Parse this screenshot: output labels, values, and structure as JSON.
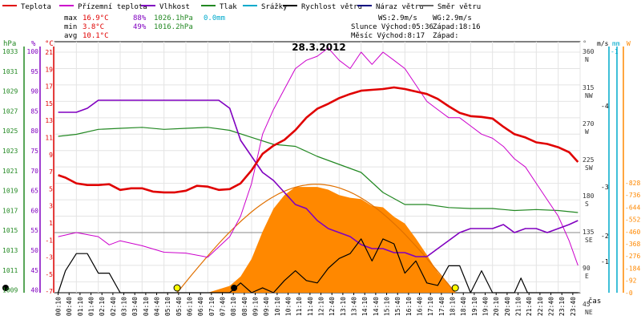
{
  "chart_data": {
    "type": "line",
    "title": "28.3.2012",
    "legend": [
      {
        "key": "teplota",
        "label": "Teplota",
        "color": "#e00000"
      },
      {
        "key": "pteplota",
        "label": "Přízemní teplota",
        "color": "#cc00cc"
      },
      {
        "key": "vlhkost",
        "label": "Vlhkost",
        "color": "#8000c0"
      },
      {
        "key": "tlak",
        "label": "Tlak",
        "color": "#228822"
      },
      {
        "key": "srazky",
        "label": "Srážky",
        "color": "#00aacc"
      },
      {
        "key": "rychlost",
        "label": "Rychlost větru",
        "color": "#000000"
      },
      {
        "key": "naraz",
        "label": "Náraz větru",
        "color": "#000080"
      },
      {
        "key": "smer",
        "label": "Směr větru",
        "color": "#666666"
      }
    ],
    "stats": {
      "max": {
        "label": "max",
        "teplota": "16.9°C",
        "vlhkost": "88%",
        "tlak": "1026.1hPa",
        "srazky": "0.0mm"
      },
      "min": {
        "label": "min",
        "teplota": "3.8°C",
        "vlhkost": "49%",
        "tlak": "1016.2hPa"
      },
      "avg": {
        "label": "avg",
        "teplota": "10.1°C"
      }
    },
    "info": {
      "ws": "WS:2.9m/s",
      "wg": "WG:2.9m/s",
      "slunce": "Slunce Východ:05:36",
      "slunce_zapad": "Západ:18:16",
      "mesic": "Měsíc  Východ:8:17",
      "mesic_zapad": "Západ:"
    },
    "axes": {
      "hpa": {
        "label": "hPa",
        "ticks": [
          "1033",
          "1031",
          "1029",
          "1027",
          "1025",
          "1023",
          "1021",
          "1019",
          "1017",
          "1015",
          "1013",
          "1011",
          "1009"
        ],
        "color": "#228822"
      },
      "pct": {
        "label": "%",
        "ticks": [
          "100",
          "95",
          "90",
          "85",
          "80",
          "75",
          "70",
          "65",
          "60",
          "55",
          "50",
          "45",
          "40"
        ],
        "color": "#8000c0"
      },
      "celsius": {
        "label": "°C",
        "ticks": [
          "21",
          "19",
          "17",
          "15",
          "13",
          "11",
          "9",
          "7",
          "5",
          "3",
          "1",
          "-1",
          "-3",
          "-5",
          "-7"
        ],
        "color": "#e00000"
      },
      "direction": {
        "label": "°",
        "ticks": [
          [
            "360",
            "N"
          ],
          [
            "315",
            "NW"
          ],
          [
            "270",
            "W"
          ],
          [
            "225",
            "SW"
          ],
          [
            "180",
            "S"
          ],
          [
            "135",
            "SE"
          ],
          [
            "90",
            "E"
          ],
          [
            "45",
            "NE"
          ]
        ]
      },
      "ms": {
        "label": "m/s",
        "ticks": [
          "4",
          "3",
          "2",
          "1"
        ]
      },
      "mm": {
        "label": "mm",
        "ticks": [
          "1"
        ]
      },
      "watt": {
        "label": "W",
        "ticks": [
          "828",
          "736",
          "644",
          "552",
          "460",
          "368",
          "276",
          "184",
          "92",
          "0"
        ],
        "color": "#ff8800"
      },
      "time_label": "čas",
      "time_ticks": [
        "00:10",
        "00:40",
        "01:10",
        "01:40",
        "02:10",
        "02:40",
        "03:10",
        "03:40",
        "04:10",
        "04:40",
        "05:10",
        "05:40",
        "06:10",
        "06:40",
        "07:10",
        "07:40",
        "08:10",
        "08:40",
        "09:10",
        "09:40",
        "10:10",
        "10:40",
        "11:10",
        "11:40",
        "12:10",
        "12:40",
        "13:10",
        "13:40",
        "14:10",
        "14:40",
        "15:10",
        "15:40",
        "16:10",
        "16:40",
        "17:10",
        "17:40",
        "18:10",
        "18:40",
        "19:10",
        "19:40",
        "20:10",
        "20:40",
        "21:10",
        "21:40",
        "22:10",
        "22:40",
        "23:10",
        "23:40"
      ]
    },
    "series": [
      {
        "name": "Teplota",
        "color": "#e00000",
        "unit": "°C",
        "x": [
          0.17,
          0.5,
          1,
          1.5,
          2,
          2.5,
          3,
          3.5,
          4,
          4.5,
          5,
          5.5,
          6,
          6.5,
          7,
          7.5,
          8,
          8.5,
          9,
          9.5,
          10,
          10.5,
          11,
          11.5,
          12,
          12.5,
          13,
          13.5,
          14,
          14.5,
          15,
          15.5,
          16,
          16.5,
          17,
          17.5,
          18,
          18.5,
          19,
          19.5,
          20,
          20.5,
          21,
          21.5,
          22,
          22.5,
          23,
          23.5,
          23.9
        ],
        "values": [
          6.0,
          5.7,
          5.0,
          4.8,
          4.8,
          4.9,
          4.2,
          4.4,
          4.4,
          4.0,
          3.9,
          3.9,
          4.1,
          4.7,
          4.6,
          4.2,
          4.3,
          5.0,
          6.6,
          8.6,
          9.6,
          10.3,
          11.5,
          13.0,
          14.1,
          14.7,
          15.4,
          15.9,
          16.3,
          16.4,
          16.5,
          16.7,
          16.5,
          16.2,
          15.9,
          15.3,
          14.4,
          13.6,
          13.2,
          13.1,
          12.9,
          11.9,
          11.0,
          10.6,
          10.0,
          9.8,
          9.4,
          8.8,
          7.6
        ]
      },
      {
        "name": "Přízemní teplota",
        "color": "#cc00cc",
        "unit": "°C",
        "x": [
          0.17,
          1,
          2,
          2.5,
          3,
          4,
          5,
          6,
          7,
          8,
          8.5,
          9,
          9.5,
          10,
          10.5,
          11,
          11.5,
          12,
          12.5,
          13,
          13.5,
          14,
          14.5,
          15,
          15.5,
          16,
          16.5,
          17,
          17.5,
          18,
          18.5,
          19,
          19.5,
          20,
          20.5,
          21,
          21.5,
          22,
          22.5,
          23,
          23.5,
          23.9
        ],
        "values": [
          -1.5,
          -1,
          -1.5,
          -2.5,
          -2,
          -2.6,
          -3.4,
          -3.5,
          -4,
          -1.5,
          1,
          5,
          11,
          14,
          16.5,
          19,
          20,
          20.5,
          21.5,
          20,
          19,
          21,
          19.5,
          21,
          20,
          19,
          17,
          15,
          14,
          13,
          13,
          12,
          11,
          10.5,
          9.5,
          8,
          7,
          5,
          3,
          1,
          -2,
          -5
        ]
      },
      {
        "name": "Vlhkost",
        "color": "#8000c0",
        "unit": "%",
        "x": [
          0.17,
          1,
          1.5,
          2,
          2.5,
          3,
          3.5,
          4,
          4.5,
          5,
          5.5,
          6,
          6.5,
          7,
          7.5,
          8,
          8.5,
          9,
          9.5,
          10,
          10.5,
          11,
          11.5,
          12,
          12.5,
          13,
          13.5,
          14,
          14.5,
          15,
          15.5,
          16,
          16.5,
          17,
          17.5,
          18,
          18.5,
          19,
          19.5,
          20,
          20.5,
          21,
          21.5,
          22,
          22.5,
          23,
          23.5,
          23.9
        ],
        "values": [
          85,
          85,
          86,
          88,
          88,
          88,
          88,
          88,
          88,
          88,
          88,
          88,
          88,
          88,
          88,
          86,
          78,
          74,
          70,
          68,
          65,
          62,
          61,
          58,
          56,
          55,
          54,
          52,
          51,
          51,
          50,
          50,
          49,
          49,
          51,
          53,
          55,
          56,
          56,
          56,
          57,
          55,
          56,
          56,
          55,
          56,
          57,
          58
        ]
      },
      {
        "name": "Tlak",
        "color": "#228822",
        "unit": "hPa",
        "x": [
          0.17,
          1,
          2,
          3,
          4,
          5,
          6,
          7,
          8,
          9,
          10,
          11,
          12,
          13,
          14,
          15,
          16,
          17,
          18,
          19,
          20,
          21,
          22,
          23,
          23.9
        ],
        "values": [
          1024.6,
          1024.8,
          1025.3,
          1025.4,
          1025.5,
          1025.3,
          1025.4,
          1025.5,
          1025.2,
          1024.5,
          1023.8,
          1023.6,
          1022.6,
          1021.8,
          1021.0,
          1019.0,
          1017.8,
          1017.8,
          1017.5,
          1017.4,
          1017.4,
          1017.2,
          1017.3,
          1017.2,
          1017.0
        ]
      },
      {
        "name": "Rychlost větru",
        "color": "#000000",
        "unit": "m/s",
        "x": [
          0.17,
          0.5,
          1,
          1.5,
          2,
          2.5,
          3,
          3.5,
          4,
          5,
          6,
          7,
          7.5,
          8,
          8.5,
          9,
          9.5,
          10,
          10.5,
          11,
          11.5,
          12,
          12.5,
          13,
          13.5,
          14,
          14.5,
          15,
          15.5,
          16,
          16.5,
          17,
          17.5,
          18,
          18.5,
          19,
          19.5,
          20,
          21,
          21.3,
          21.6,
          22,
          23,
          23.9
        ],
        "values": [
          0,
          0.9,
          1.6,
          1.6,
          0.8,
          0.8,
          0,
          0,
          0,
          0,
          0,
          0,
          0,
          0,
          0.4,
          0,
          0.2,
          0,
          0.5,
          0.9,
          0.5,
          0.4,
          1.0,
          1.4,
          1.6,
          2.2,
          1.3,
          2.2,
          2.0,
          0.8,
          1.3,
          0.4,
          0.3,
          1.1,
          1.1,
          0,
          0.9,
          0,
          0,
          0.6,
          0,
          0,
          0,
          0
        ]
      },
      {
        "name": "Slunce",
        "color": "#ff8800",
        "unit": "W",
        "x": [
          5.6,
          7,
          8,
          8.5,
          9,
          9.5,
          10,
          10.5,
          11,
          11.5,
          12,
          12.5,
          13,
          13.5,
          14,
          14.5,
          15,
          15.5,
          16,
          16.5,
          17,
          17.5,
          18.3
        ],
        "values": [
          0,
          0,
          50,
          120,
          250,
          450,
          620,
          720,
          780,
          780,
          780,
          760,
          720,
          700,
          690,
          640,
          630,
          560,
          510,
          400,
          280,
          150,
          0
        ]
      }
    ],
    "sun_path": {
      "rise": 5.6,
      "set": 18.3,
      "peak_w": 800
    }
  }
}
